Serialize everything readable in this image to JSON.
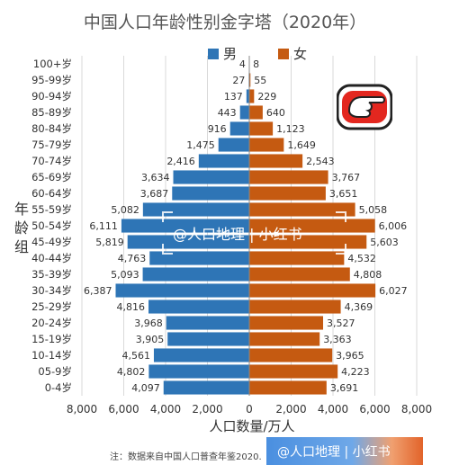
{
  "title": "中国人口年龄性别金字塔（2020年）",
  "legend": {
    "male": "男",
    "female": "女"
  },
  "y_axis_label": [
    "年",
    "龄",
    "组"
  ],
  "x_axis_label": "人口数量/万人",
  "note": "注：数据来自中国人口普查年鉴2020.",
  "watermark": {
    "text": "@人口地理 | 小红书",
    "badge_text": "@人口地理 | 小红书"
  },
  "colors": {
    "male": "#2e75b6",
    "female": "#c55a11",
    "grid": "#d9d9d9",
    "axis": "#888888"
  },
  "icons": {
    "pointer": "pointing-hand-emoji"
  },
  "chart_data": {
    "type": "bar",
    "orientation": "horizontal-population-pyramid",
    "title": "中国人口年龄性别金字塔（2020年）",
    "xlabel": "人口数量/万人",
    "ylabel": "年龄组",
    "xlim": [
      -8000,
      8000
    ],
    "x_ticks": [
      "8,000",
      "6,000",
      "4,000",
      "2,000",
      "0",
      "2,000",
      "4,000",
      "6,000",
      "8,000"
    ],
    "grid": true,
    "legend_position": "top",
    "categories": [
      "100+岁",
      "95-99岁",
      "90-94岁",
      "85-89岁",
      "80-84岁",
      "75-79岁",
      "70-74岁",
      "65-69岁",
      "60-64岁",
      "55-59岁",
      "50-54岁",
      "45-49岁",
      "40-44岁",
      "35-39岁",
      "30-34岁",
      "25-29岁",
      "20-24岁",
      "15-19岁",
      "10-14岁",
      "05-9岁",
      "0-4岁"
    ],
    "series": [
      {
        "name": "男",
        "values": [
          4,
          27,
          137,
          443,
          916,
          1475,
          2416,
          3634,
          3687,
          5082,
          6111,
          5819,
          4763,
          5093,
          6387,
          4816,
          3968,
          3905,
          4561,
          4802,
          4097
        ],
        "labels": [
          "4",
          "27",
          "137",
          "443",
          "916",
          "1,475",
          "2,416",
          "3,634",
          "3,687",
          "5,082",
          "6,111",
          "5,819",
          "4,763",
          "5,093",
          "6,387",
          "4,816",
          "3,968",
          "3,905",
          "4,561",
          "4,802",
          "4,097"
        ]
      },
      {
        "name": "女",
        "values": [
          8,
          55,
          229,
          640,
          1123,
          1649,
          2543,
          3767,
          3651,
          5058,
          6006,
          5603,
          4532,
          4808,
          6027,
          4369,
          3527,
          3363,
          3965,
          4223,
          3691
        ],
        "labels": [
          "8",
          "55",
          "229",
          "640",
          "1,123",
          "1,649",
          "2,543",
          "3,767",
          "3,651",
          "5,058",
          "6,006",
          "5,603",
          "4,532",
          "4,808",
          "6,027",
          "4,369",
          "3,527",
          "3,363",
          "3,965",
          "4,223",
          "3,691"
        ]
      }
    ]
  }
}
